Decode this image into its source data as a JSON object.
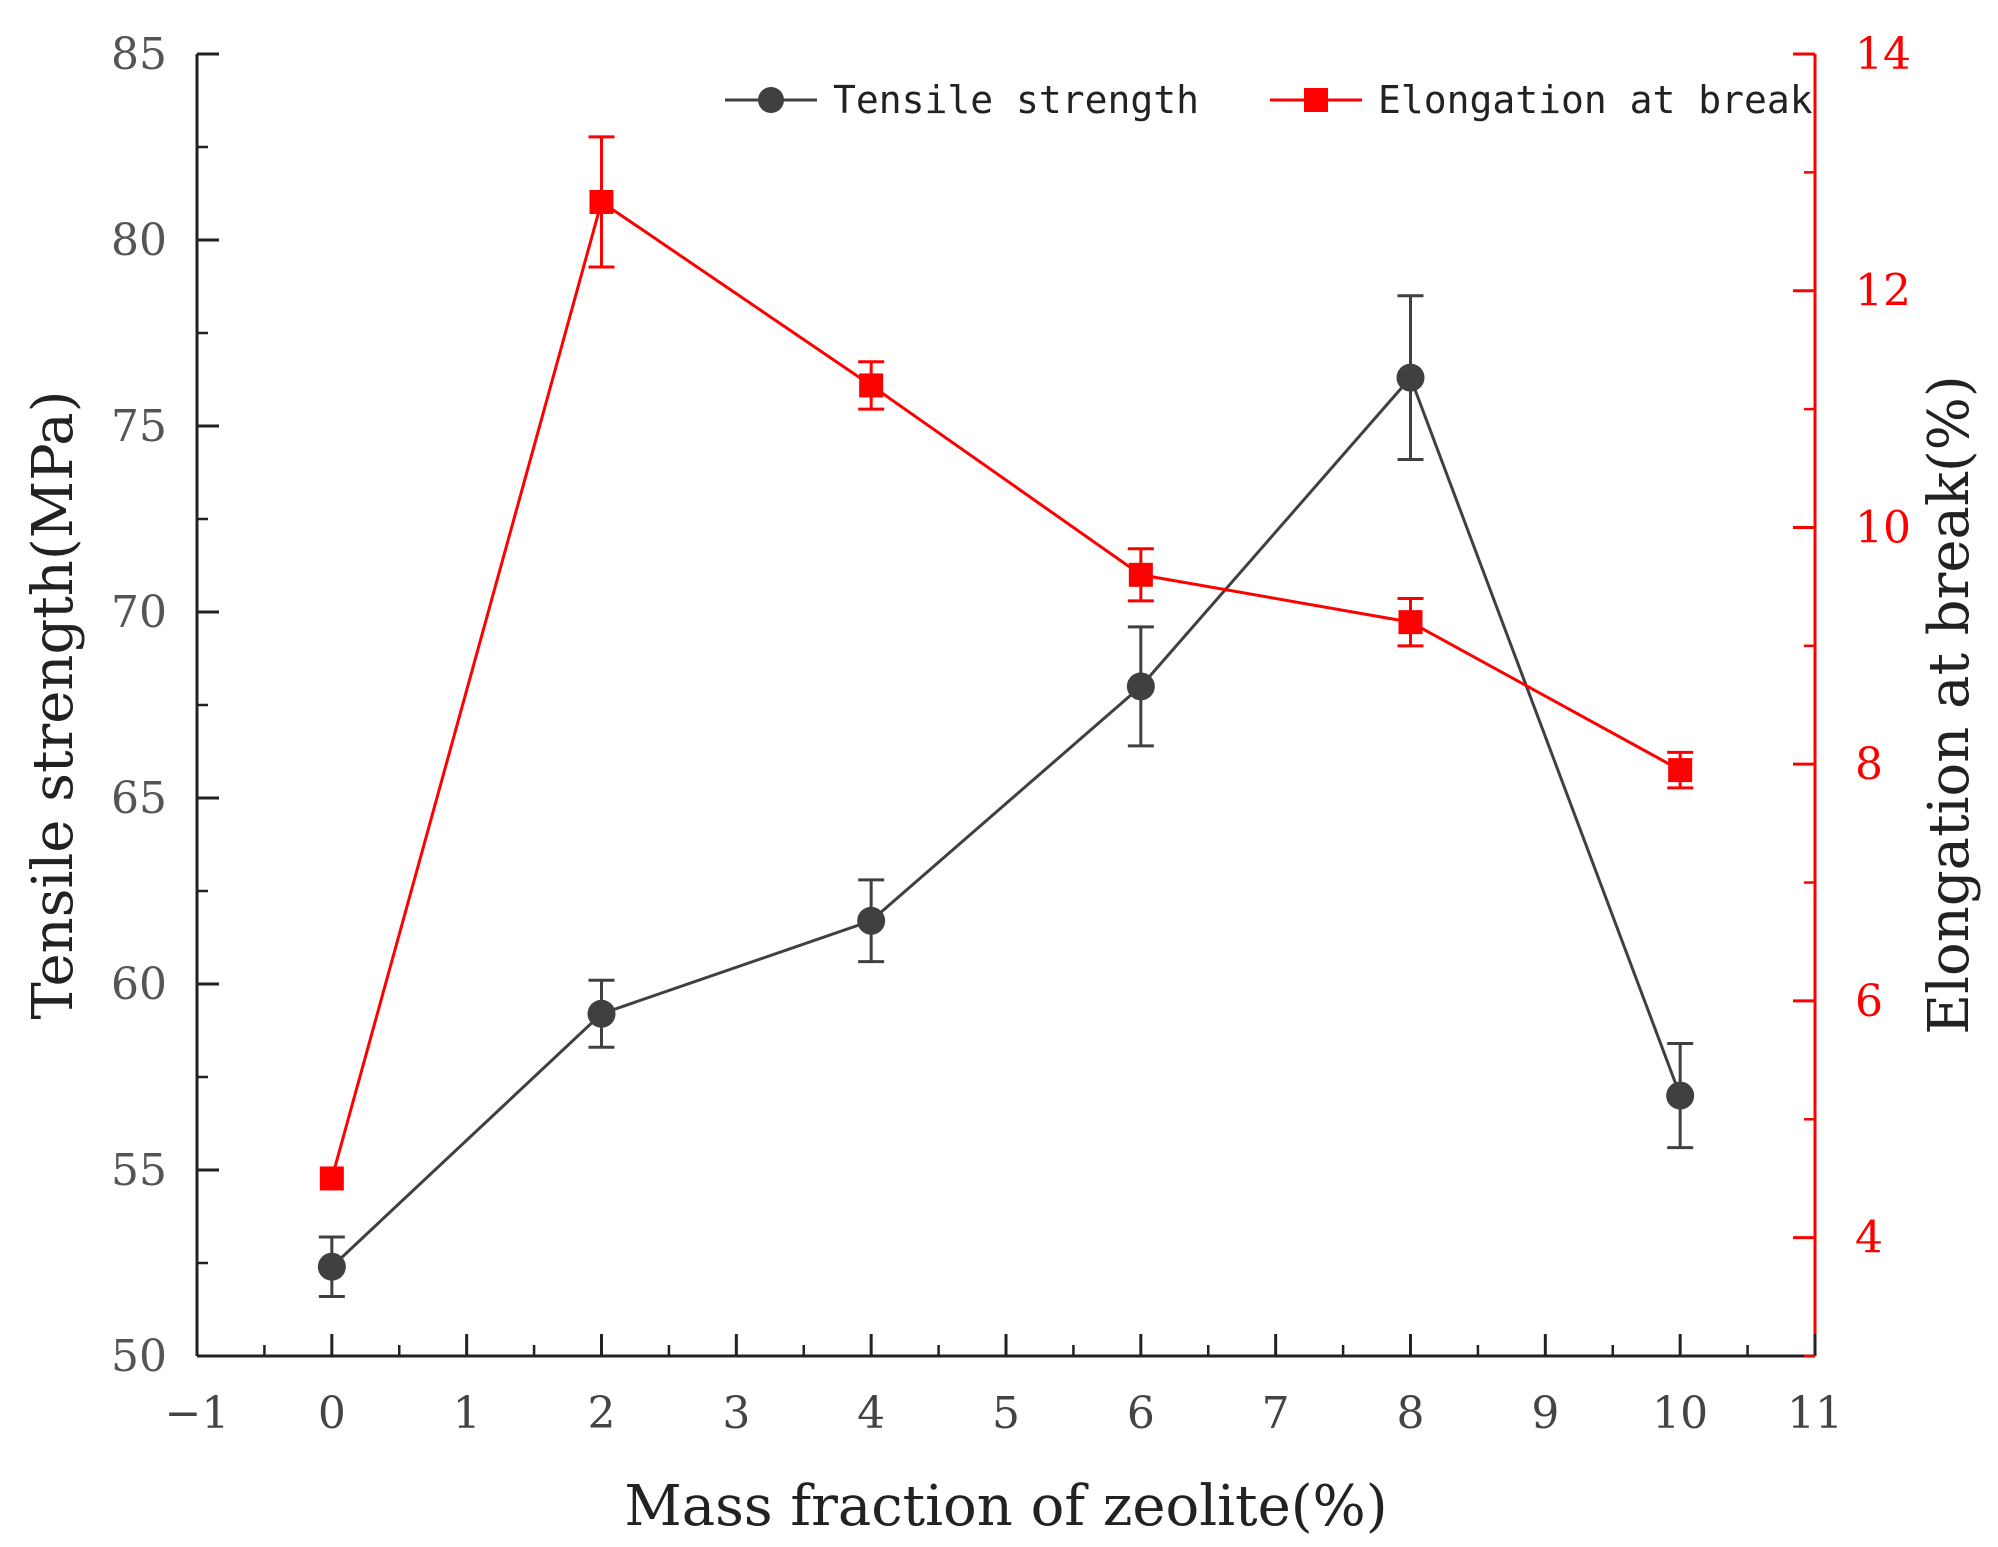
{
  "colors": {
    "tensile": "#404040",
    "elongation": "#ff0000",
    "axis": "#222222",
    "right_axis": "#ff0000"
  },
  "chart_data": {
    "type": "line",
    "title": "",
    "xlabel": "Mass fraction of zeolite(%)",
    "ylabel": "Tensile strength(MPa)",
    "y2label": "Elongation at break(%)",
    "xlim": [
      -1,
      11
    ],
    "ylim": [
      50,
      85
    ],
    "y2lim": [
      3,
      14
    ],
    "x_ticks": [
      "-1",
      "0",
      "1",
      "2",
      "3",
      "4",
      "5",
      "6",
      "7",
      "8",
      "9",
      "10",
      "11"
    ],
    "y_ticks": [
      "50",
      "55",
      "60",
      "65",
      "70",
      "75",
      "80",
      "85"
    ],
    "y2_ticks": [
      "4",
      "6",
      "8",
      "10",
      "12",
      "14"
    ],
    "legend_position": "top-right",
    "series": [
      {
        "name": "Tensile strength",
        "axis": "left",
        "marker": "circle",
        "x": [
          0,
          2,
          4,
          6,
          8,
          10
        ],
        "values": [
          52.4,
          59.2,
          61.7,
          68.0,
          76.3,
          57.0
        ],
        "error": [
          0.8,
          0.9,
          1.1,
          1.6,
          2.2,
          1.4
        ]
      },
      {
        "name": "Elongation at break",
        "axis": "right",
        "marker": "square",
        "x": [
          0,
          2,
          4,
          6,
          8,
          10
        ],
        "values": [
          4.5,
          12.75,
          11.2,
          9.6,
          9.2,
          7.95
        ],
        "error": [
          0.0,
          0.55,
          0.2,
          0.22,
          0.2,
          0.15
        ]
      }
    ]
  }
}
